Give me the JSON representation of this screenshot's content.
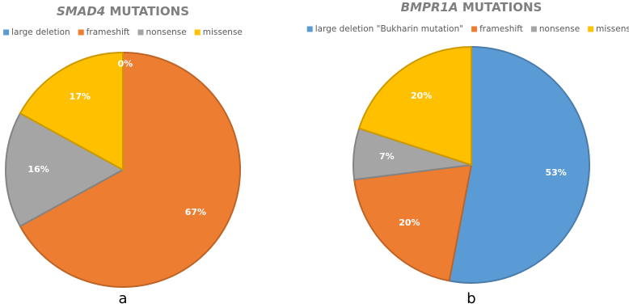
{
  "chart_data": [
    {
      "type": "pie",
      "title": "SMAD4 MUTATIONS",
      "label": "a",
      "categories": [
        "large deletion",
        "frameshift",
        "nonsense",
        "missense"
      ],
      "values": [
        0,
        67,
        16,
        17
      ],
      "value_labels": [
        "0%",
        "67%",
        "16%",
        "17%"
      ],
      "colors": [
        "#5b9bd5",
        "#ed7d31",
        "#a5a5a5",
        "#ffc000"
      ]
    },
    {
      "type": "pie",
      "title": "BMPR1A MUTATIONS",
      "label": "b",
      "categories": [
        "large deletion \"Bukharin mutation\"",
        "frameshift",
        "nonsense",
        "missense"
      ],
      "values": [
        53,
        20,
        7,
        20
      ],
      "value_labels": [
        "53%",
        "20%",
        "7%",
        "20%"
      ],
      "colors": [
        "#5b9bd5",
        "#ed7d31",
        "#a5a5a5",
        "#ffc000"
      ]
    }
  ]
}
